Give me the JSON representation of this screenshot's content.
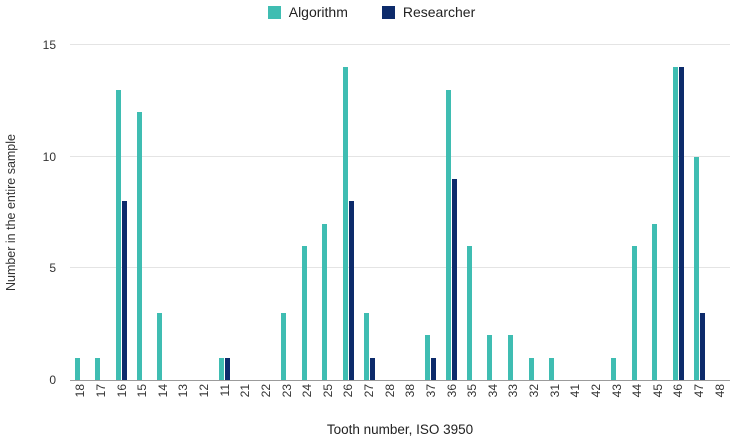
{
  "chart_data": {
    "type": "bar",
    "title": "",
    "xlabel": "Tooth number, ISO 3950",
    "ylabel": "Number in the entire sample",
    "ylim": [
      0,
      15
    ],
    "yticks": [
      0,
      5,
      10,
      15
    ],
    "grid": true,
    "legend_position": "top",
    "categories": [
      "18",
      "17",
      "16",
      "15",
      "14",
      "13",
      "12",
      "11",
      "21",
      "22",
      "23",
      "24",
      "25",
      "26",
      "27",
      "28",
      "38",
      "37",
      "36",
      "35",
      "34",
      "33",
      "32",
      "31",
      "41",
      "42",
      "43",
      "44",
      "45",
      "46",
      "47",
      "48"
    ],
    "series": [
      {
        "name": "Algorithm",
        "color": "#3FBDB2",
        "values": [
          1,
          1,
          13,
          12,
          3,
          0,
          0,
          1,
          0,
          0,
          3,
          6,
          7,
          14,
          3,
          0,
          0,
          2,
          13,
          6,
          2,
          2,
          1,
          1,
          0,
          0,
          1,
          6,
          7,
          14,
          10,
          0
        ]
      },
      {
        "name": "Researcher",
        "color": "#0D2B6B",
        "values": [
          0,
          0,
          8,
          0,
          0,
          0,
          0,
          1,
          0,
          0,
          0,
          0,
          0,
          8,
          1,
          0,
          0,
          1,
          9,
          0,
          0,
          0,
          0,
          0,
          0,
          0,
          0,
          0,
          0,
          14,
          3,
          0
        ]
      }
    ],
    "colors": {
      "gridline": "#e4e4e4",
      "axis": "#9b9b9b",
      "text": "#333333"
    }
  }
}
